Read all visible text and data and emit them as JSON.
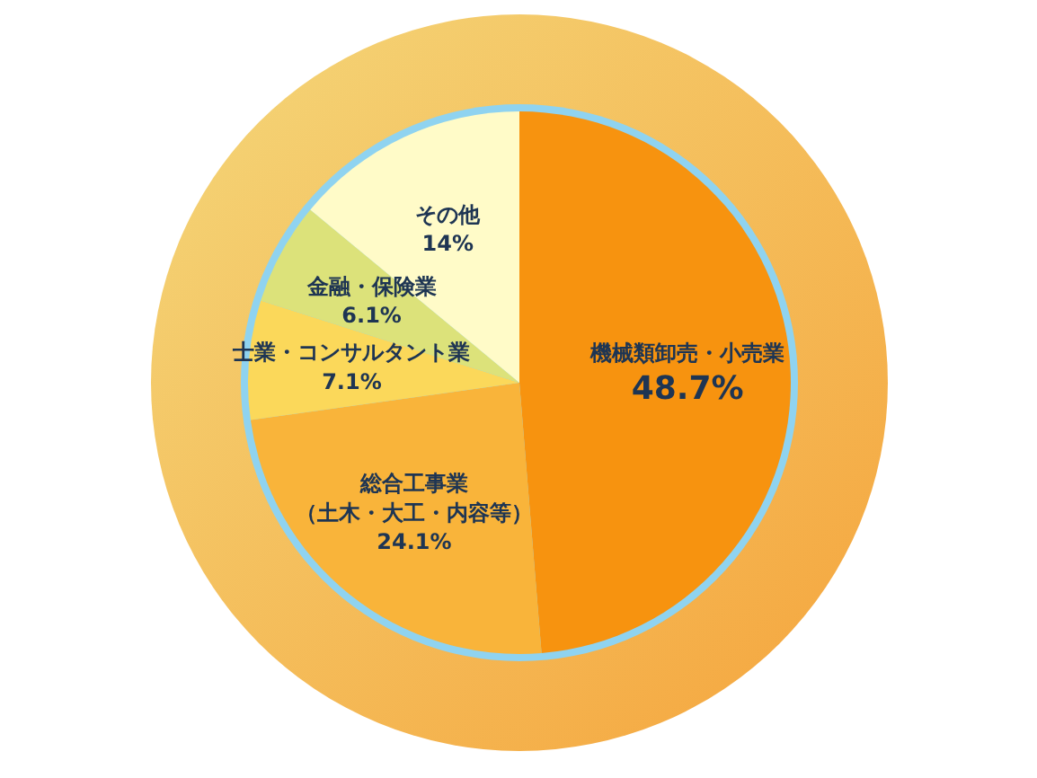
{
  "chart_data": {
    "type": "pie",
    "categories": [
      "機械類卸売・小売業",
      "総合工事業（土木・大工・内容等）",
      "士業・コンサルタント業",
      "金融・保険業",
      "その他"
    ],
    "values": [
      48.7,
      24.1,
      7.1,
      6.1,
      14
    ],
    "colors": [
      "#f7930f",
      "#f9b43a",
      "#fbd85a",
      "#dce27a",
      "#fffbc8"
    ],
    "value_labels": [
      "48.7%",
      "24.1%",
      "7.1%",
      "6.1%",
      "14%"
    ]
  }
}
